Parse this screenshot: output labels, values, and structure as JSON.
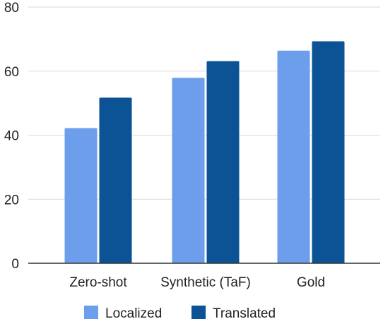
{
  "chart_data": {
    "type": "bar",
    "categories": [
      "Zero-shot",
      "Synthetic (TaF)",
      "Gold"
    ],
    "series": [
      {
        "name": "Localized",
        "values": [
          42.2,
          57.9,
          66.4
        ],
        "color": "#6d9eeb"
      },
      {
        "name": "Translated",
        "values": [
          51.7,
          63.1,
          69.3
        ],
        "color": "#0b5394"
      }
    ],
    "ylim": [
      0,
      80
    ],
    "yticks": [
      0,
      20,
      40,
      60,
      80
    ],
    "grid": true,
    "legend_position": "bottom"
  }
}
